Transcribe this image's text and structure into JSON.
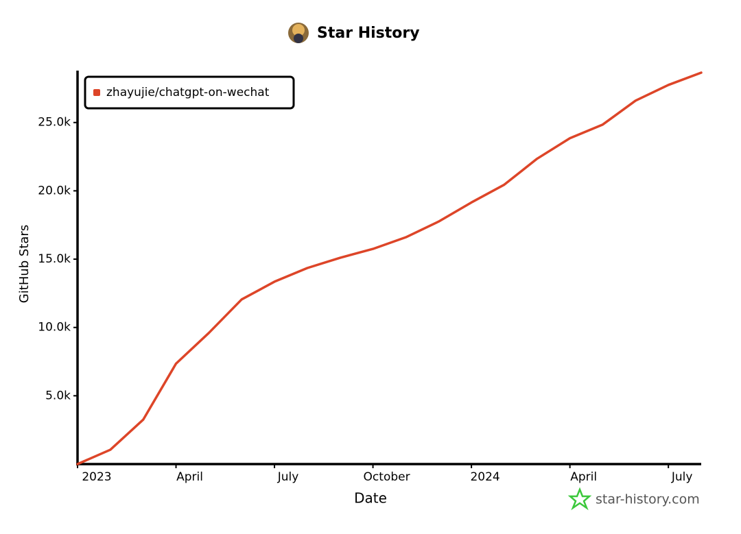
{
  "chart_data": {
    "type": "line",
    "title": "Star History",
    "x_label": "Date",
    "y_label": "GitHub Stars",
    "watermark": "star-history.com",
    "x": [
      "2023-01",
      "2023-02",
      "2023-03",
      "2023-04",
      "2023-05",
      "2023-06",
      "2023-07",
      "2023-08",
      "2023-09",
      "2023-10",
      "2023-11",
      "2023-12",
      "2024-01",
      "2024-02",
      "2024-03",
      "2024-04",
      "2024-05",
      "2024-06",
      "2024-07",
      "2024-08"
    ],
    "series": [
      {
        "name": "zhayujie/chatgpt-on-wechat",
        "color": "#dd4528",
        "values": [
          0,
          1050,
          3250,
          7350,
          9600,
          12050,
          13350,
          14350,
          15100,
          15750,
          16600,
          17750,
          19150,
          20450,
          22350,
          23850,
          24850,
          26600,
          27750,
          28650
        ]
      }
    ],
    "xlim": [
      "2023-01",
      "2024-08"
    ],
    "xticks": [
      {
        "value": "2023-01",
        "label": "2023"
      },
      {
        "value": "2023-04",
        "label": "April"
      },
      {
        "value": "2023-07",
        "label": "July"
      },
      {
        "value": "2023-10",
        "label": "October"
      },
      {
        "value": "2024-01",
        "label": "2024"
      },
      {
        "value": "2024-04",
        "label": "April"
      },
      {
        "value": "2024-07",
        "label": "July"
      }
    ],
    "ylim": [
      0,
      28800
    ],
    "yticks": [
      {
        "value": 5000,
        "label": "5.0k"
      },
      {
        "value": 10000,
        "label": "10.0k"
      },
      {
        "value": 15000,
        "label": "15.0k"
      },
      {
        "value": 20000,
        "label": "20.0k"
      },
      {
        "value": 25000,
        "label": "25.0k"
      }
    ],
    "legend": "top-left",
    "grid": false
  }
}
